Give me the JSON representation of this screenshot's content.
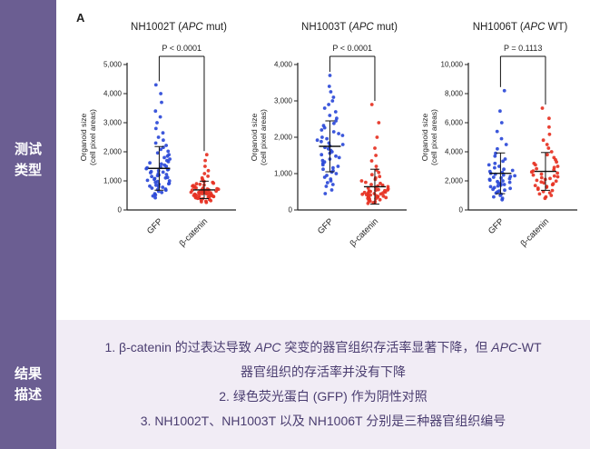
{
  "sidebar": {
    "bg": "#6b5e92",
    "items": [
      {
        "label": "测试类型"
      },
      {
        "label": "结果描述"
      }
    ]
  },
  "figure": {
    "panel_label": "A",
    "colors": {
      "gfp": "#2b49d8",
      "beta_catenin": "#e63122",
      "axis": "#222222"
    }
  },
  "chart_data": [
    {
      "type": "scatter",
      "title_segments": [
        {
          "text": "NH1002T ("
        },
        {
          "text": "APC",
          "italic": true
        },
        {
          "text": " mut)"
        }
      ],
      "p_label": "P < 0.0001",
      "ylabel_line1": "Organoid size",
      "ylabel_line2": "(cell pixel areas)",
      "ylim": [
        0,
        5000
      ],
      "yticks": [
        0,
        1000,
        2000,
        3000,
        4000,
        5000
      ],
      "ytick_labels": [
        "0",
        "1,000",
        "2,000",
        "3,000",
        "4,000",
        "5,000"
      ],
      "categories": [
        "GFP",
        "β-catenin"
      ],
      "series": [
        {
          "name": "GFP",
          "color": "#2b49d8",
          "mean": 1430,
          "sd": 750,
          "values": [
            420,
            480,
            520,
            560,
            600,
            640,
            680,
            700,
            720,
            750,
            780,
            800,
            820,
            850,
            880,
            900,
            920,
            950,
            980,
            1000,
            1020,
            1050,
            1080,
            1100,
            1120,
            1150,
            1180,
            1200,
            1220,
            1250,
            1280,
            1300,
            1320,
            1350,
            1380,
            1400,
            1420,
            1450,
            1480,
            1500,
            1540,
            1580,
            1620,
            1660,
            1700,
            1750,
            1800,
            1850,
            1900,
            1960,
            2020,
            2080,
            2150,
            2220,
            2300,
            2400,
            2500,
            2650,
            2800,
            3000,
            3200,
            3400,
            3700,
            4000,
            4300
          ]
        },
        {
          "name": "β-catenin",
          "color": "#e63122",
          "mean": 690,
          "sd": 300,
          "values": [
            260,
            280,
            300,
            320,
            340,
            360,
            380,
            400,
            410,
            420,
            430,
            440,
            450,
            460,
            470,
            480,
            490,
            500,
            510,
            520,
            530,
            540,
            550,
            560,
            570,
            580,
            590,
            600,
            610,
            620,
            630,
            640,
            650,
            660,
            670,
            680,
            690,
            700,
            710,
            720,
            730,
            740,
            750,
            760,
            780,
            800,
            820,
            840,
            860,
            880,
            900,
            920,
            950,
            980,
            1010,
            1050,
            1100,
            1160,
            1250,
            1350,
            1500,
            1700,
            1900
          ]
        }
      ]
    },
    {
      "type": "scatter",
      "title_segments": [
        {
          "text": "NH1003T ("
        },
        {
          "text": "APC",
          "italic": true
        },
        {
          "text": " mut)"
        }
      ],
      "p_label": "P < 0.0001",
      "ylabel_line1": "Organoid size",
      "ylabel_line2": "(cell pixel areas)",
      "ylim": [
        0,
        4000
      ],
      "yticks": [
        0,
        1000,
        2000,
        3000,
        4000
      ],
      "ytick_labels": [
        "0",
        "1,000",
        "2,000",
        "3,000",
        "4,000"
      ],
      "categories": [
        "GFP",
        "β-catenin"
      ],
      "series": [
        {
          "name": "GFP",
          "color": "#2b49d8",
          "mean": 1750,
          "sd": 700,
          "values": [
            450,
            550,
            650,
            700,
            750,
            800,
            850,
            900,
            950,
            1000,
            1040,
            1080,
            1120,
            1160,
            1200,
            1240,
            1280,
            1320,
            1360,
            1400,
            1440,
            1480,
            1520,
            1560,
            1600,
            1640,
            1680,
            1720,
            1760,
            1800,
            1840,
            1880,
            1920,
            1960,
            2000,
            2050,
            2100,
            2150,
            2200,
            2260,
            2320,
            2380,
            2450,
            2520,
            2600,
            2700,
            2800,
            2900,
            3000,
            3100,
            3250,
            3400,
            3700
          ]
        },
        {
          "name": "β-catenin",
          "color": "#e63122",
          "mean": 640,
          "sd": 480,
          "values": [
            180,
            200,
            220,
            240,
            260,
            280,
            300,
            310,
            320,
            330,
            340,
            350,
            360,
            370,
            380,
            390,
            400,
            410,
            420,
            430,
            440,
            450,
            460,
            470,
            480,
            490,
            500,
            510,
            520,
            530,
            540,
            550,
            560,
            580,
            600,
            620,
            640,
            660,
            680,
            700,
            730,
            760,
            800,
            840,
            880,
            920,
            970,
            1030,
            1100,
            1200,
            1350,
            1500,
            1700,
            2000,
            2400,
            2900
          ]
        }
      ]
    },
    {
      "type": "scatter",
      "title_segments": [
        {
          "text": "NH1006T ("
        },
        {
          "text": "APC",
          "italic": true
        },
        {
          "text": " WT)"
        }
      ],
      "p_label": "P = 0.1113",
      "ylabel_line1": "Organoid size",
      "ylabel_line2": "(cell pixel areas)",
      "ylim": [
        0,
        10000
      ],
      "yticks": [
        0,
        2000,
        4000,
        6000,
        8000,
        10000
      ],
      "ytick_labels": [
        "0",
        "2,000",
        "4,000",
        "6,000",
        "8,000",
        "10,000"
      ],
      "categories": [
        "GFP",
        "β-catenin"
      ],
      "series": [
        {
          "name": "GFP",
          "color": "#2b49d8",
          "mean": 2520,
          "sd": 1400,
          "values": [
            700,
            800,
            900,
            1000,
            1080,
            1160,
            1240,
            1300,
            1360,
            1420,
            1480,
            1540,
            1600,
            1650,
            1700,
            1750,
            1800,
            1850,
            1900,
            1950,
            2000,
            2050,
            2100,
            2150,
            2200,
            2250,
            2300,
            2350,
            2400,
            2460,
            2520,
            2580,
            2650,
            2720,
            2800,
            2900,
            3000,
            3100,
            3200,
            3350,
            3500,
            3700,
            3900,
            4200,
            4500,
            4900,
            5400,
            6000,
            6800,
            8200
          ]
        },
        {
          "name": "β-catenin",
          "color": "#e63122",
          "mean": 2650,
          "sd": 1300,
          "values": [
            800,
            900,
            1000,
            1100,
            1180,
            1260,
            1340,
            1420,
            1500,
            1560,
            1620,
            1680,
            1740,
            1800,
            1860,
            1920,
            1980,
            2040,
            2100,
            2160,
            2220,
            2280,
            2340,
            2400,
            2470,
            2540,
            2610,
            2680,
            2760,
            2840,
            2920,
            3000,
            3100,
            3200,
            3300,
            3450,
            3600,
            3800,
            4000,
            4250,
            4500,
            4800,
            5200,
            5700,
            6300,
            7000
          ]
        }
      ]
    }
  ],
  "description": {
    "bg": "#f1ecf5",
    "text_color": "#4a3d70",
    "lines": [
      {
        "segments": [
          {
            "text": "1. β-catenin 的过表达导致 "
          },
          {
            "text": "APC",
            "italic": true
          },
          {
            "text": " 突变的器官组织存活率显著下降，但 "
          },
          {
            "text": "APC",
            "italic": true
          },
          {
            "text": "-WT"
          }
        ]
      },
      {
        "segments": [
          {
            "text": "器官组织的存活率并没有下降"
          }
        ]
      },
      {
        "segments": [
          {
            "text": "2. 绿色荧光蛋白 (GFP) 作为阴性对照"
          }
        ]
      },
      {
        "segments": [
          {
            "text": "3. NH1002T、NH1003T 以及 NH1006T 分别是三种器官组织编号"
          }
        ]
      }
    ]
  }
}
